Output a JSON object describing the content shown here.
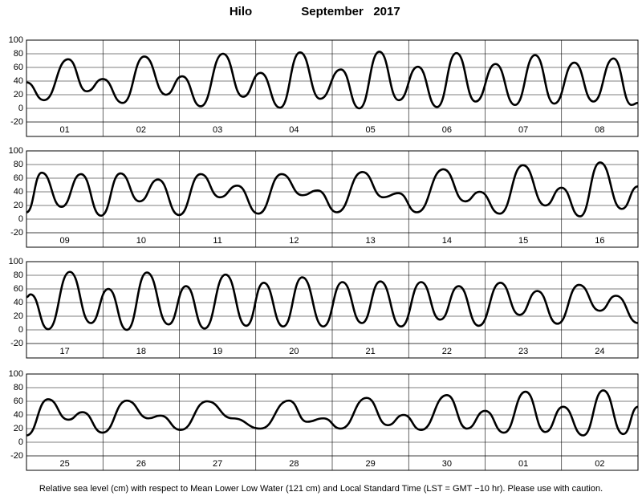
{
  "station": "Hilo",
  "month": "September   2017",
  "note": "Relative sea level (cm) with respect to Mean Lower Low Water (121 cm) and Local Standard Time (LST = GMT −10 hr). Please use with caution.",
  "chart_data": [
    {
      "type": "line",
      "categories": [
        "01",
        "02",
        "03",
        "04",
        "05",
        "06",
        "07",
        "08"
      ],
      "xlim": [
        0,
        192
      ],
      "ylim": [
        -20,
        100
      ],
      "yticks": [
        -20,
        0,
        20,
        40,
        60,
        80,
        100
      ],
      "grid": true,
      "x": [
        0,
        5.5,
        13.1,
        18.9,
        24,
        30.2,
        37,
        43.8,
        48.9,
        54.7,
        61.7,
        68,
        73.5,
        79.6,
        85.9,
        92.2,
        98.7,
        104.5,
        110.8,
        116.9,
        122.9,
        128.9,
        135,
        141,
        147.3,
        153.4,
        159.7,
        165.7,
        172,
        178,
        184.3,
        190,
        192
      ],
      "values": [
        38,
        12,
        72,
        25,
        43,
        8,
        76,
        20,
        47,
        3,
        80,
        17,
        52,
        1,
        82,
        14,
        57,
        0,
        83,
        12,
        61,
        2,
        81,
        10,
        65,
        5,
        78,
        7,
        67,
        10,
        73,
        5,
        8
      ]
    },
    {
      "type": "line",
      "categories": [
        "09",
        "10",
        "11",
        "12",
        "13",
        "14",
        "15",
        "16"
      ],
      "xlim": [
        0,
        192
      ],
      "ylim": [
        -20,
        100
      ],
      "yticks": [
        -20,
        0,
        20,
        40,
        60,
        80,
        100
      ],
      "grid": true,
      "x": [
        0,
        4.8,
        11,
        17.1,
        23.4,
        29.5,
        35.5,
        41.3,
        47.9,
        54.7,
        60.7,
        66.2,
        72.8,
        80.1,
        86.6,
        91.4,
        97.5,
        105.5,
        112,
        116.8,
        122.6,
        130.9,
        137.7,
        142.3,
        148.6,
        155.9,
        162.9,
        168,
        173.8,
        180.1,
        186.9,
        192
      ],
      "values": [
        10,
        68,
        18,
        66,
        5,
        67,
        26,
        58,
        6,
        66,
        32,
        49,
        8,
        66,
        35,
        42,
        10,
        69,
        32,
        38,
        10,
        73,
        26,
        40,
        8,
        79,
        20,
        46,
        4,
        83,
        15,
        48
      ]
    },
    {
      "type": "line",
      "categories": [
        "17",
        "18",
        "19",
        "20",
        "21",
        "22",
        "23",
        "24"
      ],
      "xlim": [
        0,
        192
      ],
      "ylim": [
        -20,
        100
      ],
      "yticks": [
        -20,
        0,
        20,
        40,
        60,
        80,
        100
      ],
      "grid": true,
      "x": [
        0,
        1.3,
        6.8,
        13.6,
        20.2,
        25.7,
        31.5,
        37.8,
        44.6,
        50.1,
        55.9,
        62.5,
        69,
        74.5,
        80.6,
        86.6,
        93.2,
        99.2,
        105.3,
        111.1,
        117.6,
        123.9,
        129.9,
        135.7,
        142,
        148.8,
        154.8,
        160.4,
        166.7,
        173.5,
        180,
        185.1,
        192
      ],
      "values": [
        48,
        52,
        1,
        85,
        10,
        60,
        0,
        84,
        8,
        64,
        2,
        81,
        6,
        69,
        5,
        77,
        5,
        70,
        10,
        71,
        5,
        70,
        15,
        64,
        6,
        69,
        22,
        57,
        9,
        66,
        28,
        50,
        10
      ]
    },
    {
      "type": "line",
      "categories": [
        "25",
        "26",
        "27",
        "28",
        "29",
        "30",
        "01",
        "02"
      ],
      "xlim": [
        0,
        192
      ],
      "ylim": [
        -20,
        100
      ],
      "yticks": [
        -20,
        0,
        20,
        40,
        60,
        80,
        100
      ],
      "grid": true,
      "x": [
        0,
        6.8,
        13.1,
        17.6,
        23.9,
        31.5,
        38.3,
        42,
        48.4,
        56.7,
        64.7,
        73.5,
        82.4,
        88.1,
        93.2,
        98.7,
        106.8,
        113.4,
        118.4,
        123.9,
        132,
        138.3,
        144,
        149.9,
        156.7,
        162.9,
        168.5,
        174.8,
        181.1,
        187.4,
        192
      ],
      "values": [
        10,
        63,
        33,
        44,
        14,
        61,
        35,
        39,
        18,
        60,
        35,
        20,
        61,
        30,
        35,
        20,
        65,
        25,
        40,
        18,
        69,
        20,
        46,
        14,
        74,
        15,
        52,
        10,
        76,
        12,
        52
      ]
    }
  ]
}
